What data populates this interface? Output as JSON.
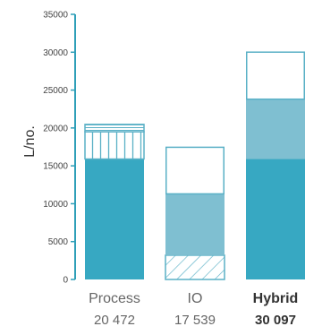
{
  "chart_data": {
    "type": "bar",
    "stacked": true,
    "title": "",
    "xlabel": "",
    "ylabel": "L/no.",
    "ylim": [
      0,
      35000
    ],
    "yticks": [
      0,
      5000,
      10000,
      15000,
      20000,
      25000,
      30000,
      35000
    ],
    "ytick_labels": [
      "0",
      "5000",
      "10000",
      "15000",
      "20000",
      "25000",
      "30000",
      "35000"
    ],
    "grid": false,
    "legend": "none",
    "categories": [
      {
        "name": "Process",
        "total_label": "20 472",
        "bold": false,
        "segments": [
          {
            "value": 15900,
            "fill": "#37a8c2",
            "pattern": "solid"
          },
          {
            "value": 3600,
            "fill": "#ffffff",
            "pattern": "vertical-hatch"
          },
          {
            "value": 972,
            "fill": "#ffffff",
            "pattern": "horizontal-hatch"
          }
        ]
      },
      {
        "name": "IO",
        "total_label": "17 539",
        "bold": false,
        "segments": [
          {
            "value": 3200,
            "fill": "#ffffff",
            "pattern": "diagonal-hatch"
          },
          {
            "value": 8100,
            "fill": "#7fbfd1",
            "pattern": "solid"
          },
          {
            "value": 6239,
            "fill": "#ffffff",
            "pattern": "empty"
          }
        ]
      },
      {
        "name": "Hybrid",
        "total_label": "30 097",
        "bold": true,
        "segments": [
          {
            "value": 15900,
            "fill": "#37a8c2",
            "pattern": "solid"
          },
          {
            "value": 7900,
            "fill": "#7fbfd1",
            "pattern": "solid"
          },
          {
            "value": 6297,
            "fill": "#ffffff",
            "pattern": "empty"
          }
        ]
      }
    ],
    "colors": {
      "axis": "#2f9fb8",
      "outline": "#5ab0c6",
      "dark": "#37a8c2",
      "light": "#7fbfd1"
    }
  }
}
